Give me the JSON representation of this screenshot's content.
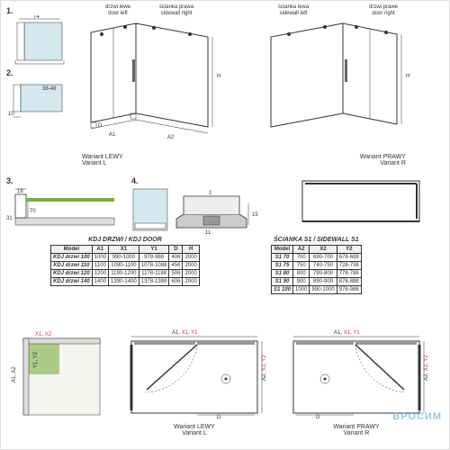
{
  "colors": {
    "glass": "#d4e8f0",
    "accent": "#7ab040",
    "line": "#333333",
    "bg": "#ffffff",
    "red": "#cc3333"
  },
  "topLabels": {
    "doorLeft": "drzwi lewe\ndoor left",
    "sidewallRight": "ścianka prawa\nsidewall right",
    "sidewallLeft": "ścianka lewa\nsidewall left",
    "doorRight": "drzwi prawe\ndoor right"
  },
  "detail1": {
    "num": "1.",
    "dim74": "74"
  },
  "detail2": {
    "num": "2.",
    "dim10": "10",
    "dimRange": "38-48"
  },
  "detail3": {
    "num": "3.",
    "dim18": "18",
    "dim31": "31",
    "dim70": "70"
  },
  "detail4": {
    "num": "4.",
    "dim1": "1",
    "dim11": "11",
    "dim15": "15"
  },
  "variants": {
    "leftT": "Wariant LEWY",
    "leftB": "Variant L",
    "rightT": "Wariant PRAWY",
    "rightB": "Variant R"
  },
  "isoDims": {
    "H": "H",
    "A1": "A1",
    "A2": "A2",
    "D": "D"
  },
  "table1": {
    "title": "KDJ DRZWI / KDJ DOOR",
    "cols": [
      "Model",
      "A1",
      "X1",
      "Y1",
      "D",
      "H"
    ],
    "rows": [
      [
        "KDJ drzwi 100",
        "1000",
        "990-1000",
        "978-988",
        "406",
        "2000"
      ],
      [
        "KDJ drzwi 110",
        "1100",
        "1090-1100",
        "1078-1088",
        "456",
        "2000"
      ],
      [
        "KDJ drzwi 120",
        "1200",
        "1190-1200",
        "1178-1188",
        "506",
        "2000"
      ],
      [
        "KDJ drzwi 140",
        "1400",
        "1390-1400",
        "1378-1388",
        "606",
        "2000"
      ]
    ]
  },
  "table2": {
    "title": "ŚCIANKA S1 / SIDEWALL S1",
    "cols": [
      "Model",
      "A2",
      "X2",
      "Y2"
    ],
    "rows": [
      [
        "S1 70",
        "700",
        "690-700",
        "678-688"
      ],
      [
        "S1 75",
        "750",
        "740-750",
        "728-738"
      ],
      [
        "S1 80",
        "800",
        "790-800",
        "778-788"
      ],
      [
        "S1 90",
        "900",
        "890-900",
        "878-888"
      ],
      [
        "S1 100",
        "1000",
        "990-1000",
        "978-988"
      ]
    ]
  },
  "planLabels": {
    "a1": "A1,",
    "x1y1": "X1, Y1",
    "a2": "A2,",
    "x2y2": "X2, Y2",
    "a1a2": "A1, A2",
    "x1x2": "X1, X2",
    "y1y2": "Y1, Y2",
    "D": "D"
  },
  "watermark": "ВРОСИМ"
}
